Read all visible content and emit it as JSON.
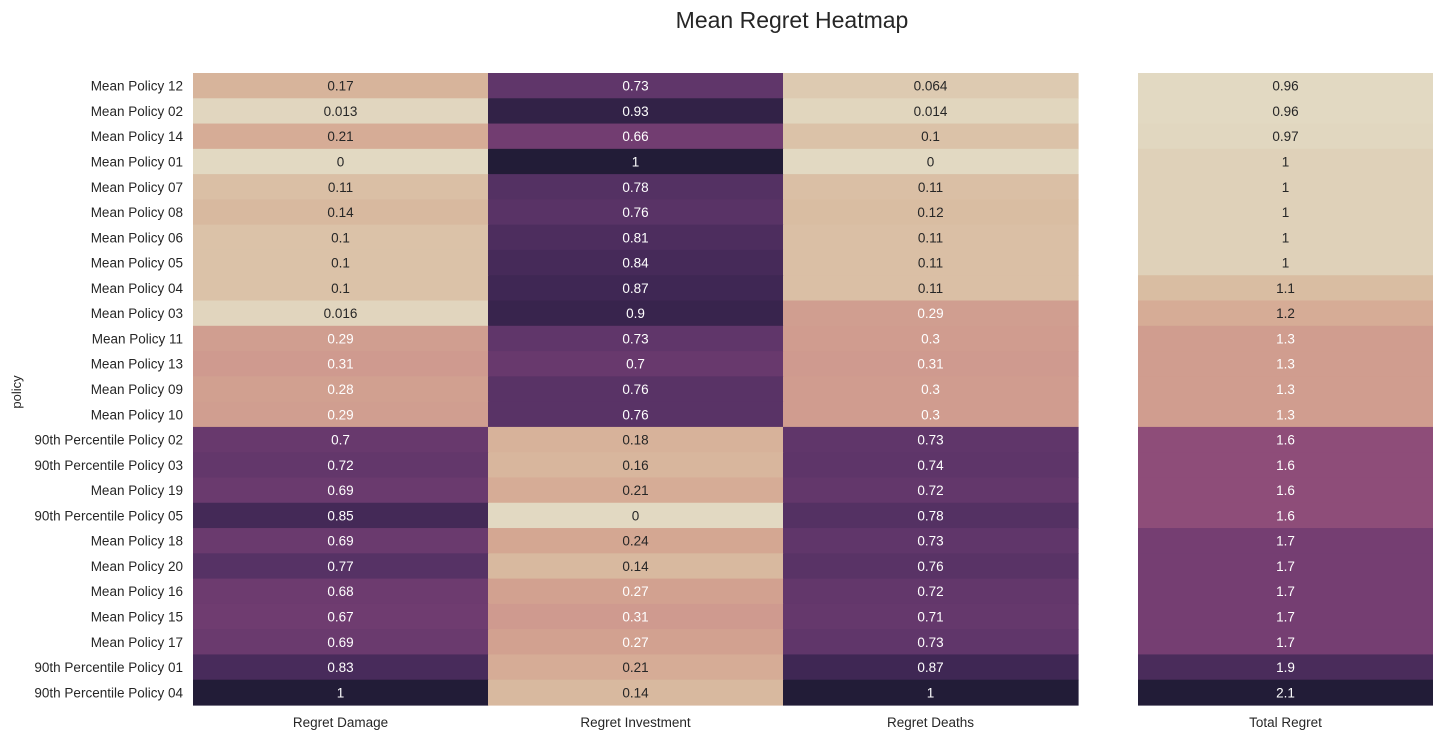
{
  "chart_data": {
    "type": "heatmap",
    "title": "Mean Regret Heatmap",
    "ylabel": "policy",
    "rows": [
      "Mean Policy 12",
      "Mean Policy 02",
      "Mean Policy 14",
      "Mean Policy 01",
      "Mean Policy 07",
      "Mean Policy 08",
      "Mean Policy 06",
      "Mean Policy 05",
      "Mean Policy 04",
      "Mean Policy 03",
      "Mean Policy 11",
      "Mean Policy 13",
      "Mean Policy 09",
      "Mean Policy 10",
      "90th Percentile Policy 02",
      "90th Percentile Policy 03",
      "Mean Policy 19",
      "90th Percentile Policy 05",
      "Mean Policy 18",
      "Mean Policy 20",
      "Mean Policy 16",
      "Mean Policy 15",
      "Mean Policy 17",
      "90th Percentile Policy 01",
      "90th Percentile Policy 04"
    ],
    "columns": [
      "Regret Damage",
      "Regret Investment",
      "Regret Deaths"
    ],
    "values": [
      [
        0.17,
        0.73,
        0.064
      ],
      [
        0.013,
        0.93,
        0.014
      ],
      [
        0.21,
        0.66,
        0.1
      ],
      [
        0,
        1,
        0
      ],
      [
        0.11,
        0.78,
        0.11
      ],
      [
        0.14,
        0.76,
        0.12
      ],
      [
        0.1,
        0.81,
        0.11
      ],
      [
        0.1,
        0.84,
        0.11
      ],
      [
        0.1,
        0.87,
        0.11
      ],
      [
        0.016,
        0.9,
        0.29
      ],
      [
        0.29,
        0.73,
        0.3
      ],
      [
        0.31,
        0.7,
        0.31
      ],
      [
        0.28,
        0.76,
        0.3
      ],
      [
        0.29,
        0.76,
        0.3
      ],
      [
        0.7,
        0.18,
        0.73
      ],
      [
        0.72,
        0.16,
        0.74
      ],
      [
        0.69,
        0.21,
        0.72
      ],
      [
        0.85,
        0,
        0.78
      ],
      [
        0.69,
        0.24,
        0.73
      ],
      [
        0.77,
        0.14,
        0.76
      ],
      [
        0.68,
        0.27,
        0.72
      ],
      [
        0.67,
        0.31,
        0.71
      ],
      [
        0.69,
        0.27,
        0.73
      ],
      [
        0.83,
        0.21,
        0.87
      ],
      [
        1,
        0.14,
        1
      ]
    ],
    "total_column": "Total Regret",
    "total_values": [
      0.96,
      0.96,
      0.97,
      1,
      1,
      1,
      1,
      1,
      1.1,
      1.2,
      1.3,
      1.3,
      1.3,
      1.3,
      1.6,
      1.6,
      1.6,
      1.6,
      1.7,
      1.7,
      1.7,
      1.7,
      1.7,
      1.9,
      2.1
    ],
    "main_range": [
      0,
      1
    ],
    "total_range": [
      0.96,
      2.1
    ],
    "colorbar": false
  },
  "colors": {
    "colormap": [
      "#e2d9c2",
      "#d9bca1",
      "#d4a591",
      "#c98f8d",
      "#a0587d",
      "#7b4174",
      "#5b3468",
      "#3e2653",
      "#221c37"
    ]
  }
}
